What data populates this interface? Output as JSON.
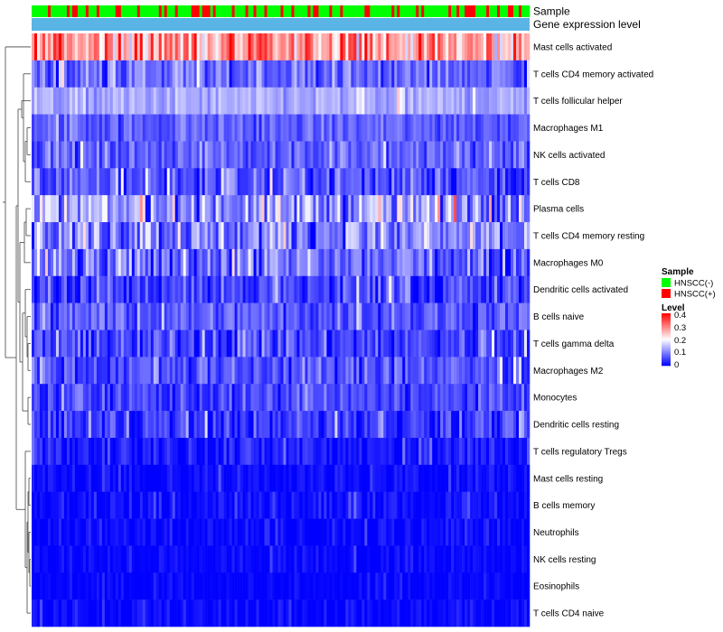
{
  "chart_data": {
    "type": "heatmap",
    "title": "",
    "annotation_tracks": {
      "sample_label": "Sample",
      "gene_expression_label": "Gene expression level",
      "gene_expression_color": "#5ab4e6"
    },
    "rows": [
      {
        "name": "Mast cells activated",
        "mean": 0.27,
        "var": 0.1
      },
      {
        "name": "T cells CD4 memory activated",
        "mean": 0.08,
        "var": 0.06
      },
      {
        "name": "T cells follicular helper",
        "mean": 0.13,
        "var": 0.035
      },
      {
        "name": "Macrophages M1",
        "mean": 0.075,
        "var": 0.04
      },
      {
        "name": "NK cells activated",
        "mean": 0.075,
        "var": 0.045
      },
      {
        "name": "T cells CD8",
        "mean": 0.065,
        "var": 0.06
      },
      {
        "name": "Plasma cells",
        "mean": 0.12,
        "var": 0.09
      },
      {
        "name": "T cells CD4 memory resting",
        "mean": 0.1,
        "var": 0.08
      },
      {
        "name": "Macrophages M0",
        "mean": 0.08,
        "var": 0.08
      },
      {
        "name": "Dendritic cells activated",
        "mean": 0.05,
        "var": 0.06
      },
      {
        "name": "B cells naive",
        "mean": 0.07,
        "var": 0.05
      },
      {
        "name": "T cells gamma delta",
        "mean": 0.05,
        "var": 0.06
      },
      {
        "name": "Macrophages M2",
        "mean": 0.06,
        "var": 0.05
      },
      {
        "name": "Monocytes",
        "mean": 0.05,
        "var": 0.045
      },
      {
        "name": "Dendritic cells resting",
        "mean": 0.04,
        "var": 0.05
      },
      {
        "name": "T cells regulatory  Tregs",
        "mean": 0.02,
        "var": 0.045
      },
      {
        "name": "Mast cells resting",
        "mean": 0.008,
        "var": 0.025
      },
      {
        "name": "B cells memory",
        "mean": 0.01,
        "var": 0.03
      },
      {
        "name": "Neutrophils",
        "mean": 0.008,
        "var": 0.025
      },
      {
        "name": "NK cells resting",
        "mean": 0.004,
        "var": 0.02
      },
      {
        "name": "Eosinophils",
        "mean": 0.002,
        "var": 0.015
      },
      {
        "name": "T cells CD4 naive",
        "mean": 0.004,
        "var": 0.025
      }
    ],
    "n_samples": 184,
    "sample_groups": [
      "HNSCC(-)",
      "HNSCC(+)"
    ],
    "sample_group_fraction_positive": 0.3,
    "color_scale": {
      "low": "#0000ff",
      "mid": "#ffffff",
      "high": "#ff0000",
      "min": 0,
      "max": 0.4,
      "midpoint": 0.2
    },
    "legend": {
      "placement": "right",
      "sample": {
        "title": "Sample",
        "entries": [
          {
            "label": "HNSCC(-)",
            "color": "#00ff00"
          },
          {
            "label": "HNSCC(+)",
            "color": "#ff0000"
          }
        ]
      },
      "level": {
        "title": "Level",
        "ticks": [
          "0.4",
          "0.3",
          "0.2",
          "0.1",
          "0"
        ],
        "tick_values": [
          0.4,
          0.3,
          0.2,
          0.1,
          0
        ]
      }
    },
    "row_dendrogram": true
  }
}
